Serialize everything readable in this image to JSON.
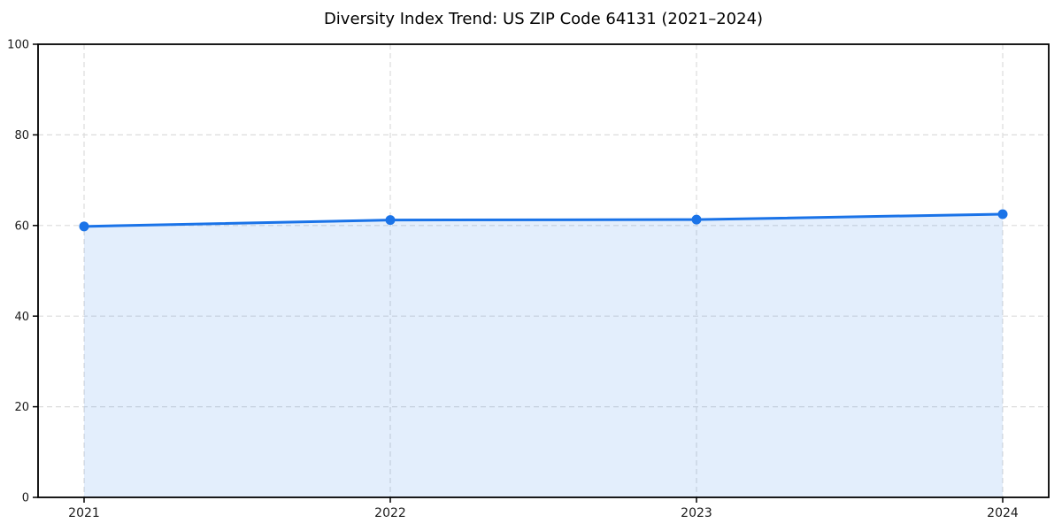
{
  "page": {
    "background": "#ffffff"
  },
  "chart_data": {
    "type": "line",
    "title": "Diversity Index Trend: US ZIP Code 64131 (2021–2024)",
    "x": [
      2021,
      2022,
      2023,
      2024
    ],
    "xtick_labels": [
      "2021",
      "2022",
      "2023",
      "2024"
    ],
    "series": [
      {
        "name": "Diversity Index",
        "values": [
          59.8,
          61.2,
          61.3,
          62.5
        ]
      }
    ],
    "xlabel": "",
    "ylabel": "",
    "ylim": [
      0,
      100
    ],
    "yticks": [
      0,
      20,
      40,
      60,
      80,
      100
    ],
    "grid": true,
    "grid_style": "dashed",
    "legend_position": "none",
    "area_fill": true,
    "marker": "circle",
    "colors": {
      "line": "#1a73e8",
      "marker": "#1a73e8",
      "area": "#1a73e8",
      "area_opacity": 0.12,
      "grid": "#dcdcdc",
      "spine": "#000000",
      "tick_label": "#1a1a1a",
      "title": "#000000"
    }
  }
}
